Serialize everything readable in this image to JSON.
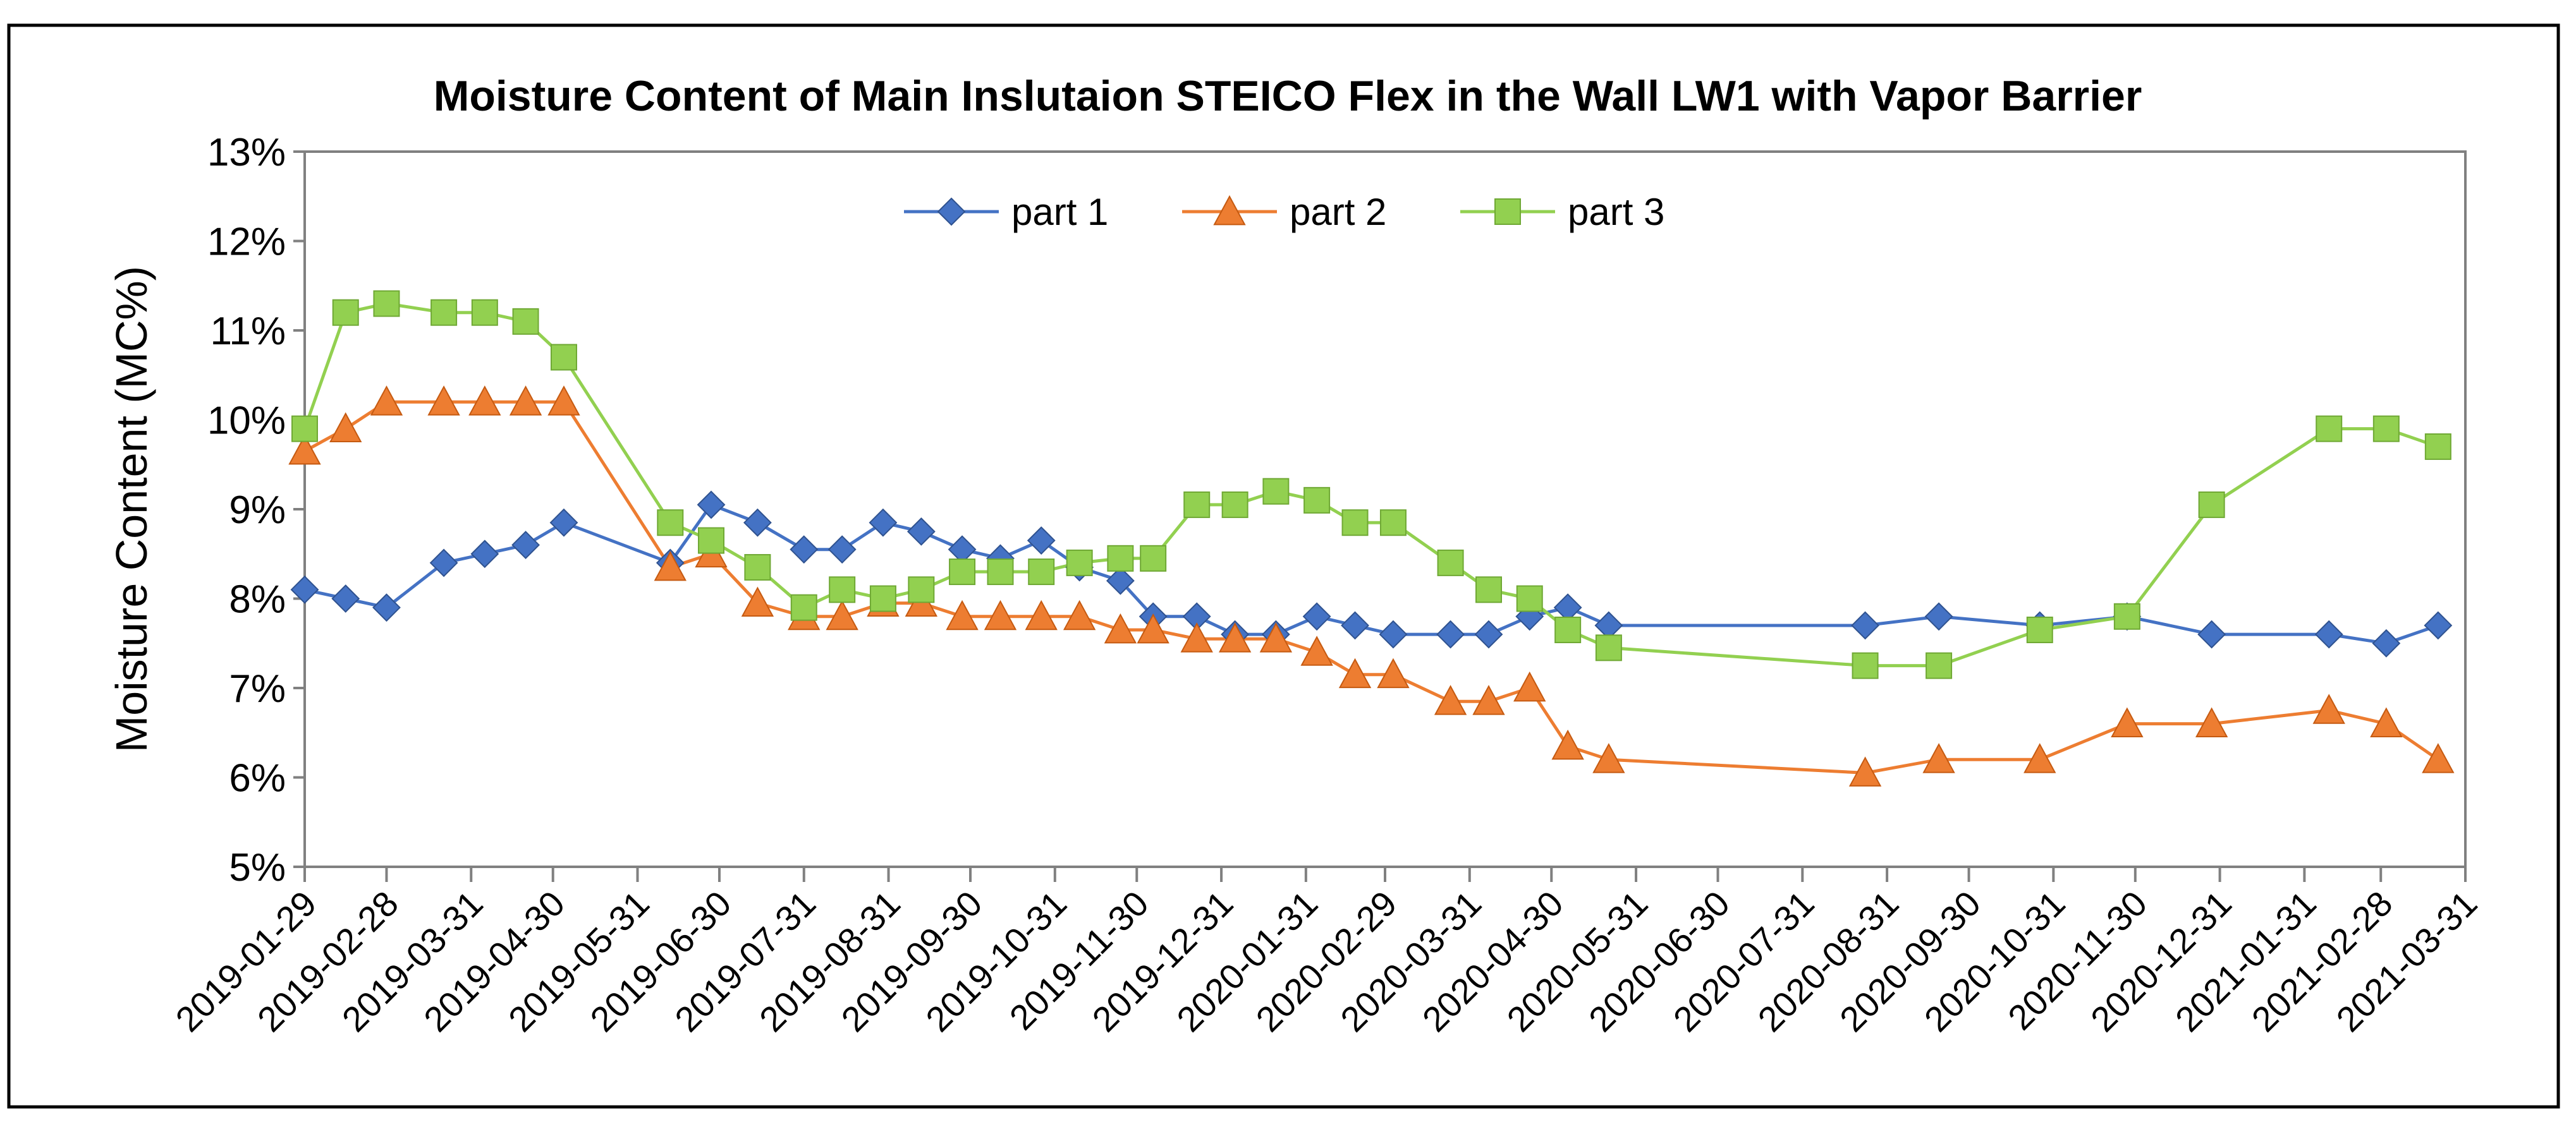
{
  "chart_data": {
    "type": "line",
    "title": "Moisture Content of Main Inslutaion STEICO Flex in the Wall LW1 with Vapor Barrier",
    "xlabel": "",
    "ylabel": "Moisture Content (MC%)",
    "ylim": [
      5,
      13
    ],
    "y_ticks": [
      "5%",
      "6%",
      "7%",
      "8%",
      "9%",
      "10%",
      "11%",
      "12%",
      "13%"
    ],
    "x_tick_labels": [
      "2019-01-29",
      "2019-02-28",
      "2019-03-31",
      "2019-04-30",
      "2019-05-31",
      "2019-06-30",
      "2019-07-31",
      "2019-08-31",
      "2019-09-30",
      "2019-10-31",
      "2019-11-30",
      "2019-12-31",
      "2020-01-31",
      "2020-02-29",
      "2020-03-31",
      "2020-04-30",
      "2020-05-31",
      "2020-06-30",
      "2020-07-31",
      "2020-08-31",
      "2020-09-30",
      "2020-10-31",
      "2020-11-30",
      "2020-12-31",
      "2021-01-31",
      "2021-02-28",
      "2021-03-31"
    ],
    "x_range_days": [
      0,
      792
    ],
    "x_unit": "days since 2019-01-29",
    "grid": false,
    "legend_position": "top-center",
    "series": [
      {
        "name": "part 1",
        "color": "#4472C4",
        "marker": "diamond",
        "points": [
          [
            0,
            8.1
          ],
          [
            15,
            8.0
          ],
          [
            30,
            7.9
          ],
          [
            51,
            8.4
          ],
          [
            66,
            8.5
          ],
          [
            81,
            8.6
          ],
          [
            95,
            8.85
          ],
          [
            134,
            8.4
          ],
          [
            149,
            9.05
          ],
          [
            166,
            8.85
          ],
          [
            183,
            8.55
          ],
          [
            197,
            8.55
          ],
          [
            212,
            8.85
          ],
          [
            226,
            8.75
          ],
          [
            241,
            8.55
          ],
          [
            255,
            8.45
          ],
          [
            270,
            8.65
          ],
          [
            284,
            8.35
          ],
          [
            299,
            8.2
          ],
          [
            311,
            7.8
          ],
          [
            327,
            7.8
          ],
          [
            341,
            7.6
          ],
          [
            356,
            7.6
          ],
          [
            371,
            7.8
          ],
          [
            385,
            7.7
          ],
          [
            399,
            7.6
          ],
          [
            420,
            7.6
          ],
          [
            434,
            7.6
          ],
          [
            449,
            7.8
          ],
          [
            463,
            7.9
          ],
          [
            478,
            7.7
          ],
          [
            572,
            7.7
          ],
          [
            599,
            7.8
          ],
          [
            636,
            7.7
          ],
          [
            668,
            7.8
          ],
          [
            699,
            7.6
          ],
          [
            742,
            7.6
          ],
          [
            763,
            7.5
          ],
          [
            782,
            7.7
          ]
        ]
      },
      {
        "name": "part 2",
        "color": "#ED7D31",
        "marker": "triangle",
        "points": [
          [
            0,
            9.65
          ],
          [
            15,
            9.9
          ],
          [
            30,
            10.2
          ],
          [
            51,
            10.2
          ],
          [
            66,
            10.2
          ],
          [
            81,
            10.2
          ],
          [
            95,
            10.2
          ],
          [
            134,
            8.35
          ],
          [
            149,
            8.5
          ],
          [
            166,
            7.95
          ],
          [
            183,
            7.8
          ],
          [
            197,
            7.8
          ],
          [
            212,
            7.95
          ],
          [
            226,
            7.95
          ],
          [
            241,
            7.8
          ],
          [
            255,
            7.8
          ],
          [
            270,
            7.8
          ],
          [
            284,
            7.8
          ],
          [
            299,
            7.65
          ],
          [
            311,
            7.65
          ],
          [
            327,
            7.55
          ],
          [
            341,
            7.55
          ],
          [
            356,
            7.55
          ],
          [
            371,
            7.4
          ],
          [
            385,
            7.15
          ],
          [
            399,
            7.15
          ],
          [
            420,
            6.85
          ],
          [
            434,
            6.85
          ],
          [
            449,
            7.0
          ],
          [
            463,
            6.35
          ],
          [
            478,
            6.2
          ],
          [
            572,
            6.05
          ],
          [
            599,
            6.2
          ],
          [
            636,
            6.2
          ],
          [
            668,
            6.6
          ],
          [
            699,
            6.6
          ],
          [
            742,
            6.75
          ],
          [
            763,
            6.6
          ],
          [
            782,
            6.2
          ]
        ]
      },
      {
        "name": "part 3",
        "color": "#92D050",
        "marker": "square",
        "points": [
          [
            0,
            9.9
          ],
          [
            15,
            11.2
          ],
          [
            30,
            11.3
          ],
          [
            51,
            11.2
          ],
          [
            66,
            11.2
          ],
          [
            81,
            11.1
          ],
          [
            95,
            10.7
          ],
          [
            134,
            8.85
          ],
          [
            149,
            8.65
          ],
          [
            166,
            8.35
          ],
          [
            183,
            7.9
          ],
          [
            197,
            8.1
          ],
          [
            212,
            8.0
          ],
          [
            226,
            8.1
          ],
          [
            241,
            8.3
          ],
          [
            255,
            8.3
          ],
          [
            270,
            8.3
          ],
          [
            284,
            8.4
          ],
          [
            299,
            8.45
          ],
          [
            311,
            8.45
          ],
          [
            327,
            9.05
          ],
          [
            341,
            9.05
          ],
          [
            356,
            9.2
          ],
          [
            371,
            9.1
          ],
          [
            385,
            8.85
          ],
          [
            399,
            8.85
          ],
          [
            420,
            8.4
          ],
          [
            434,
            8.1
          ],
          [
            449,
            8.0
          ],
          [
            463,
            7.65
          ],
          [
            478,
            7.45
          ],
          [
            572,
            7.25
          ],
          [
            599,
            7.25
          ],
          [
            636,
            7.65
          ],
          [
            668,
            7.8
          ],
          [
            699,
            9.05
          ],
          [
            742,
            9.9
          ],
          [
            763,
            9.9
          ],
          [
            782,
            9.7
          ]
        ]
      }
    ]
  }
}
